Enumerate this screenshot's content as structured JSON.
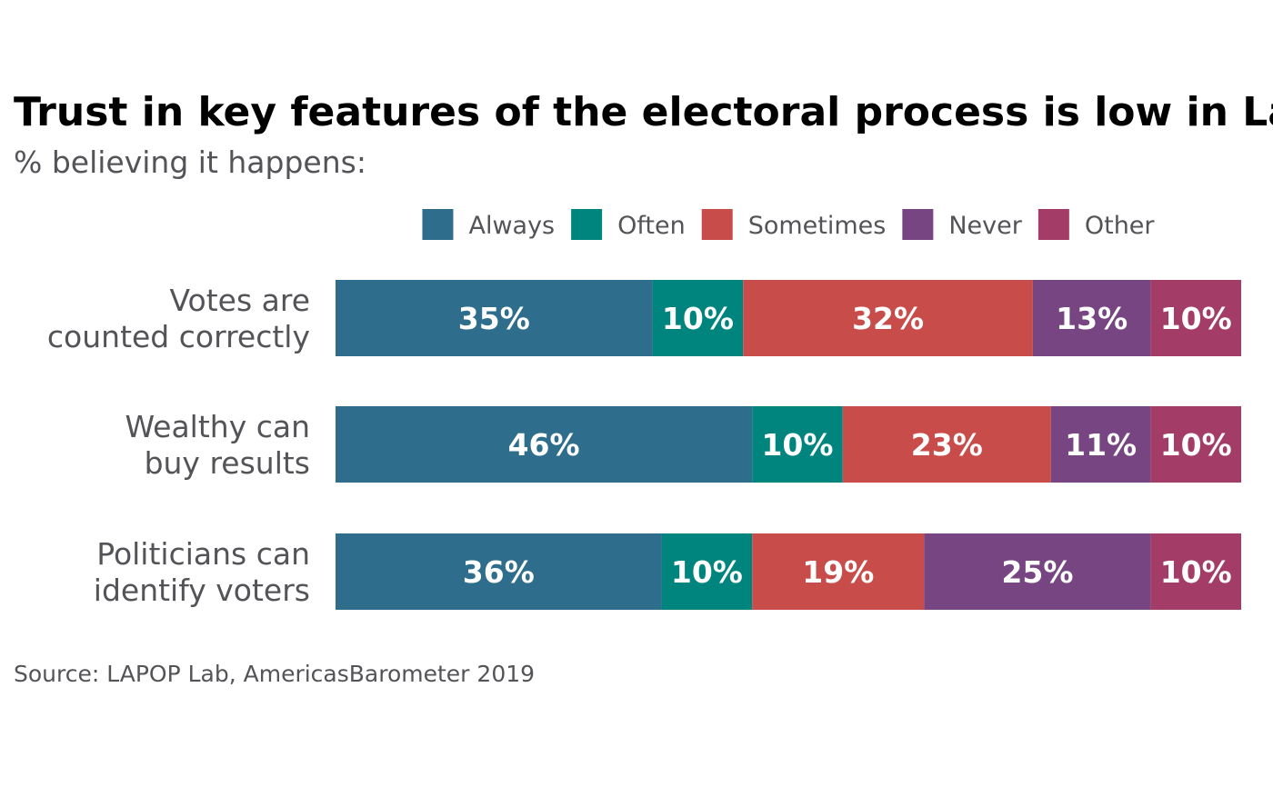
{
  "chart_data": {
    "type": "bar",
    "orientation": "horizontal",
    "stacked": true,
    "title": "Trust in key features of the electoral process is low in Latin America",
    "subtitle": "% believing it happens:",
    "source": "Source: LAPOP Lab, AmericasBarometer 2019",
    "categories": [
      [
        "Votes are",
        "counted correctly"
      ],
      [
        "Wealthy can",
        "buy results"
      ],
      [
        "Politicians can",
        "identify voters"
      ]
    ],
    "series": [
      {
        "name": "Always",
        "color": "#2e6e8c",
        "values": [
          35,
          46,
          36
        ]
      },
      {
        "name": "Often",
        "color": "#00857e",
        "values": [
          10,
          10,
          10
        ]
      },
      {
        "name": "Sometimes",
        "color": "#c84d4a",
        "values": [
          32,
          23,
          19
        ]
      },
      {
        "name": "Never",
        "color": "#774582",
        "values": [
          13,
          11,
          25
        ]
      },
      {
        "name": "Other",
        "color": "#a33d68",
        "values": [
          10,
          10,
          10
        ]
      }
    ],
    "value_suffix": "%",
    "xlim": [
      0,
      100
    ],
    "grid": false,
    "legend_position": "top"
  }
}
